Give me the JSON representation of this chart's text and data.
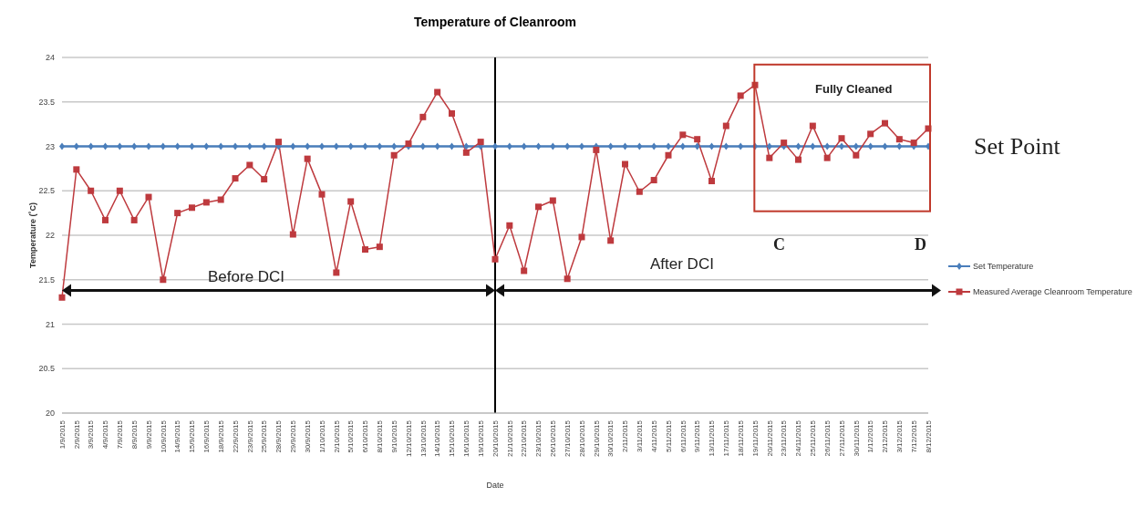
{
  "chart_data": {
    "type": "line",
    "title": "Temperature of Cleanroom",
    "xlabel": "Date",
    "ylabel": "Temperature (˚C)",
    "categories": [
      "1/9/2015",
      "2/9/2015",
      "3/9/2015",
      "4/9/2015",
      "7/9/2015",
      "8/9/2015",
      "9/9/2015",
      "10/9/2015",
      "14/9/2015",
      "15/9/2015",
      "16/9/2015",
      "18/9/2015",
      "22/9/2015",
      "23/9/2015",
      "25/9/2015",
      "28/9/2015",
      "29/9/2015",
      "30/9/2015",
      "1/10/2015",
      "2/10/2015",
      "5/10/2015",
      "6/10/2015",
      "8/10/2015",
      "9/10/2015",
      "12/10/2015",
      "13/10/2015",
      "14/10/2015",
      "15/10/2015",
      "16/10/2015",
      "19/10/2015",
      "20/10/2015",
      "21/10/2015",
      "22/10/2015",
      "23/10/2015",
      "26/10/2015",
      "27/10/2015",
      "28/10/2015",
      "29/10/2015",
      "30/10/2015",
      "2/11/2015",
      "3/11/2015",
      "4/11/2015",
      "5/11/2015",
      "6/11/2015",
      "9/11/2015",
      "13/11/2015",
      "17/11/2015",
      "18/11/2015",
      "19/11/2015",
      "20/11/2015",
      "23/11/2015",
      "24/11/2015",
      "25/11/2015",
      "26/11/2015",
      "27/11/2015",
      "30/11/2015",
      "1/12/2015",
      "2/12/2015",
      "3/12/2015",
      "7/12/2015",
      "8/12/2015"
    ],
    "series": [
      {
        "name": "Set Temperature",
        "color": "#4a7ebb",
        "marker": "diamond",
        "values": [
          23,
          23,
          23,
          23,
          23,
          23,
          23,
          23,
          23,
          23,
          23,
          23,
          23,
          23,
          23,
          23,
          23,
          23,
          23,
          23,
          23,
          23,
          23,
          23,
          23,
          23,
          23,
          23,
          23,
          23,
          23,
          23,
          23,
          23,
          23,
          23,
          23,
          23,
          23,
          23,
          23,
          23,
          23,
          23,
          23,
          23,
          23,
          23,
          23,
          23,
          23,
          23,
          23,
          23,
          23,
          23,
          23,
          23,
          23,
          23,
          23
        ]
      },
      {
        "name": "Measured Average Cleanroom Temperature",
        "color": "#be3a3e",
        "marker": "square",
        "values": [
          21.3,
          22.74,
          22.5,
          22.17,
          22.5,
          22.17,
          22.43,
          21.5,
          22.25,
          22.31,
          22.37,
          22.4,
          22.64,
          22.79,
          22.63,
          23.05,
          22.01,
          22.86,
          22.46,
          21.58,
          22.38,
          21.84,
          21.87,
          22.9,
          23.03,
          23.33,
          23.61,
          23.37,
          22.93,
          23.05,
          21.73,
          22.11,
          21.6,
          22.32,
          22.39,
          21.51,
          21.98,
          22.96,
          21.94,
          22.8,
          22.49,
          22.62,
          22.9,
          23.13,
          23.08,
          22.61,
          23.23,
          23.57,
          23.69,
          22.87,
          23.04,
          22.85,
          23.23,
          22.87,
          23.09,
          22.9,
          23.14,
          23.26,
          23.08,
          23.04,
          23.2
        ]
      }
    ],
    "ylim": [
      20,
      24
    ],
    "yticks": [
      20,
      20.5,
      21,
      21.5,
      22,
      22.5,
      23,
      23.5,
      24
    ],
    "grid": "y",
    "legend": "right",
    "ref_lines": [
      {
        "axis": "x",
        "value": "20/10/2015",
        "color": "#000000"
      }
    ],
    "annotations": [
      "Before DCI",
      "After DCI",
      "Fully Cleaned",
      "C",
      "D",
      "Set Point"
    ]
  }
}
